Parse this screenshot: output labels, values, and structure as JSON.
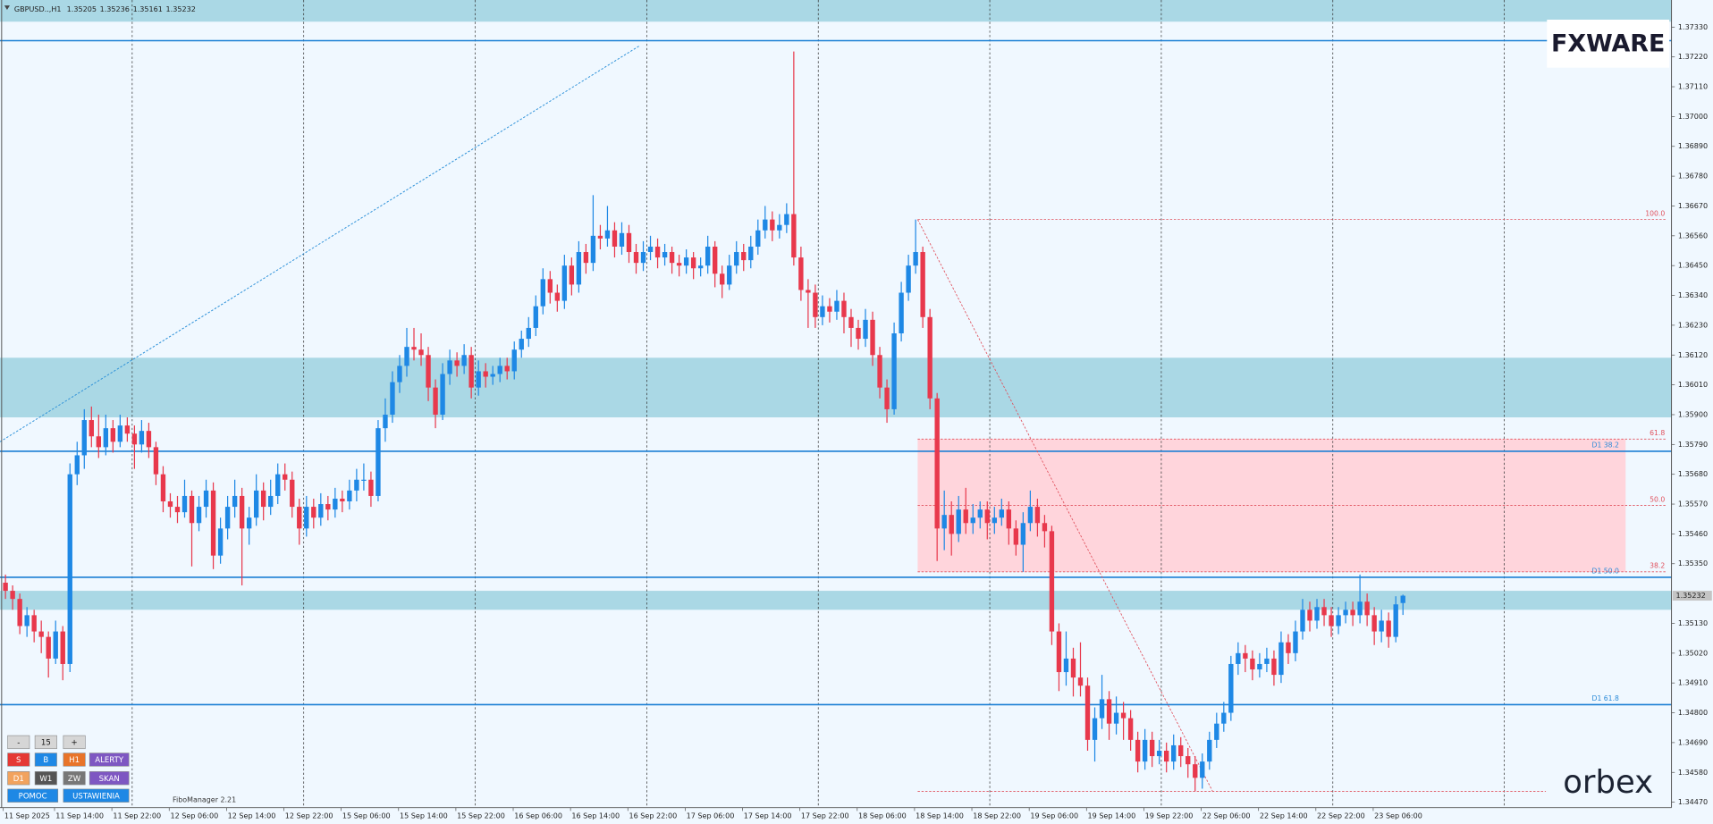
{
  "chart_data": {
    "type": "candlestick",
    "symbol": "GBPUSD..,H1",
    "up_color": "#1e88e5",
    "down_color": "#e8384c",
    "candles": [
      [
        1.3528,
        1.3531,
        1.3522,
        1.3525
      ],
      [
        1.3525,
        1.3527,
        1.3518,
        1.3522
      ],
      [
        1.3522,
        1.3524,
        1.3509,
        1.3512
      ],
      [
        1.3512,
        1.3519,
        1.3508,
        1.3516
      ],
      [
        1.3516,
        1.3518,
        1.3506,
        1.351
      ],
      [
        1.351,
        1.3514,
        1.3502,
        1.3508
      ],
      [
        1.3508,
        1.351,
        1.3493,
        1.35
      ],
      [
        1.35,
        1.3514,
        1.3498,
        1.351
      ],
      [
        1.351,
        1.3512,
        1.3492,
        1.3498
      ],
      [
        1.3498,
        1.3572,
        1.3495,
        1.3568
      ],
      [
        1.3568,
        1.358,
        1.3564,
        1.3575
      ],
      [
        1.3575,
        1.3592,
        1.357,
        1.3588
      ],
      [
        1.3588,
        1.3593,
        1.3578,
        1.3582
      ],
      [
        1.3582,
        1.359,
        1.3574,
        1.3578
      ],
      [
        1.3578,
        1.359,
        1.3575,
        1.3585
      ],
      [
        1.3585,
        1.3588,
        1.3576,
        1.358
      ],
      [
        1.358,
        1.359,
        1.3578,
        1.3586
      ],
      [
        1.3586,
        1.3589,
        1.358,
        1.3583
      ],
      [
        1.3583,
        1.3586,
        1.357,
        1.3579
      ],
      [
        1.3579,
        1.3588,
        1.3576,
        1.3584
      ],
      [
        1.3584,
        1.3587,
        1.3574,
        1.3578
      ],
      [
        1.3578,
        1.358,
        1.3564,
        1.3568
      ],
      [
        1.3568,
        1.3571,
        1.3554,
        1.3558
      ],
      [
        1.3558,
        1.3561,
        1.3552,
        1.3556
      ],
      [
        1.3556,
        1.356,
        1.355,
        1.3554
      ],
      [
        1.3554,
        1.3566,
        1.3552,
        1.356
      ],
      [
        1.356,
        1.3562,
        1.3534,
        1.355
      ],
      [
        1.355,
        1.356,
        1.3547,
        1.3556
      ],
      [
        1.3556,
        1.3566,
        1.3552,
        1.3562
      ],
      [
        1.3562,
        1.3565,
        1.3533,
        1.3538
      ],
      [
        1.3538,
        1.3552,
        1.3535,
        1.3548
      ],
      [
        1.3548,
        1.356,
        1.3544,
        1.3556
      ],
      [
        1.3556,
        1.3566,
        1.3552,
        1.356
      ],
      [
        1.356,
        1.3563,
        1.3527,
        1.3548
      ],
      [
        1.3548,
        1.3556,
        1.3542,
        1.3552
      ],
      [
        1.3552,
        1.3568,
        1.3549,
        1.3562
      ],
      [
        1.3562,
        1.3565,
        1.3551,
        1.3556
      ],
      [
        1.3556,
        1.3566,
        1.3553,
        1.356
      ],
      [
        1.356,
        1.3572,
        1.3557,
        1.3568
      ],
      [
        1.3568,
        1.3572,
        1.3562,
        1.3566
      ],
      [
        1.3566,
        1.3569,
        1.3552,
        1.3556
      ],
      [
        1.3556,
        1.3559,
        1.3542,
        1.3548
      ],
      [
        1.3548,
        1.356,
        1.3545,
        1.3556
      ],
      [
        1.3556,
        1.3559,
        1.3548,
        1.3552
      ],
      [
        1.3552,
        1.3561,
        1.3549,
        1.3557
      ],
      [
        1.3557,
        1.356,
        1.3551,
        1.3555
      ],
      [
        1.3555,
        1.3563,
        1.3552,
        1.3559
      ],
      [
        1.3559,
        1.3562,
        1.3554,
        1.3558
      ],
      [
        1.3558,
        1.3566,
        1.3555,
        1.3562
      ],
      [
        1.3562,
        1.357,
        1.3558,
        1.3566
      ],
      [
        1.3566,
        1.3572,
        1.3562,
        1.3566
      ],
      [
        1.3566,
        1.3569,
        1.3556,
        1.356
      ],
      [
        1.356,
        1.3588,
        1.3558,
        1.3585
      ],
      [
        1.3585,
        1.3596,
        1.358,
        1.359
      ],
      [
        1.359,
        1.3606,
        1.3587,
        1.3602
      ],
      [
        1.3602,
        1.3612,
        1.3598,
        1.3608
      ],
      [
        1.3608,
        1.3622,
        1.3604,
        1.3615
      ],
      [
        1.3615,
        1.3622,
        1.361,
        1.3614
      ],
      [
        1.3614,
        1.362,
        1.3608,
        1.3612
      ],
      [
        1.3612,
        1.3615,
        1.3595,
        1.36
      ],
      [
        1.36,
        1.3603,
        1.3585,
        1.359
      ],
      [
        1.359,
        1.3609,
        1.3588,
        1.3605
      ],
      [
        1.3605,
        1.3614,
        1.3601,
        1.361
      ],
      [
        1.361,
        1.3613,
        1.3604,
        1.3608
      ],
      [
        1.3608,
        1.3616,
        1.3605,
        1.3612
      ],
      [
        1.3612,
        1.3615,
        1.3596,
        1.36
      ],
      [
        1.36,
        1.361,
        1.3597,
        1.3606
      ],
      [
        1.3606,
        1.3609,
        1.36,
        1.3604
      ],
      [
        1.3604,
        1.3608,
        1.3601,
        1.3605
      ],
      [
        1.3605,
        1.3611,
        1.3602,
        1.3608
      ],
      [
        1.3608,
        1.3611,
        1.3603,
        1.3606
      ],
      [
        1.3606,
        1.3617,
        1.3603,
        1.3614
      ],
      [
        1.3614,
        1.3621,
        1.3611,
        1.3618
      ],
      [
        1.3618,
        1.3626,
        1.3615,
        1.3622
      ],
      [
        1.3622,
        1.3634,
        1.3619,
        1.363
      ],
      [
        1.363,
        1.3644,
        1.3627,
        1.364
      ],
      [
        1.364,
        1.3643,
        1.3631,
        1.3635
      ],
      [
        1.3635,
        1.3638,
        1.3628,
        1.3632
      ],
      [
        1.3632,
        1.3649,
        1.3629,
        1.3645
      ],
      [
        1.3645,
        1.3648,
        1.3634,
        1.3638
      ],
      [
        1.3638,
        1.3654,
        1.3635,
        1.365
      ],
      [
        1.365,
        1.3653,
        1.3642,
        1.3646
      ],
      [
        1.3646,
        1.3671,
        1.3643,
        1.3656
      ],
      [
        1.3656,
        1.366,
        1.3651,
        1.3655
      ],
      [
        1.3655,
        1.3667,
        1.3652,
        1.3658
      ],
      [
        1.3658,
        1.3661,
        1.3648,
        1.3652
      ],
      [
        1.3652,
        1.3661,
        1.3649,
        1.3657
      ],
      [
        1.3657,
        1.366,
        1.3646,
        1.365
      ],
      [
        1.365,
        1.3653,
        1.3642,
        1.3646
      ],
      [
        1.3646,
        1.3654,
        1.3643,
        1.365
      ],
      [
        1.365,
        1.3656,
        1.3647,
        1.3652
      ],
      [
        1.3652,
        1.3655,
        1.3644,
        1.3648
      ],
      [
        1.3648,
        1.3653,
        1.3645,
        1.365
      ],
      [
        1.365,
        1.3652,
        1.3642,
        1.3646
      ],
      [
        1.3646,
        1.3649,
        1.3641,
        1.3645
      ],
      [
        1.3645,
        1.3651,
        1.3642,
        1.3648
      ],
      [
        1.3648,
        1.365,
        1.364,
        1.3644
      ],
      [
        1.3644,
        1.3648,
        1.3641,
        1.3645
      ],
      [
        1.3645,
        1.3656,
        1.3642,
        1.3652
      ],
      [
        1.3652,
        1.3654,
        1.3637,
        1.3642
      ],
      [
        1.3642,
        1.3645,
        1.3633,
        1.3638
      ],
      [
        1.3638,
        1.3649,
        1.3636,
        1.3645
      ],
      [
        1.3645,
        1.3654,
        1.3642,
        1.365
      ],
      [
        1.365,
        1.3653,
        1.3643,
        1.3647
      ],
      [
        1.3647,
        1.3656,
        1.3644,
        1.3652
      ],
      [
        1.3652,
        1.3662,
        1.3649,
        1.3658
      ],
      [
        1.3658,
        1.3667,
        1.3655,
        1.3662
      ],
      [
        1.3662,
        1.3665,
        1.3654,
        1.3658
      ],
      [
        1.3658,
        1.3664,
        1.3655,
        1.366
      ],
      [
        1.366,
        1.3668,
        1.3657,
        1.3664
      ],
      [
        1.3664,
        1.3724,
        1.3645,
        1.3648
      ],
      [
        1.3648,
        1.3652,
        1.3632,
        1.3636
      ],
      [
        1.3636,
        1.364,
        1.3622,
        1.3635
      ],
      [
        1.3635,
        1.3638,
        1.3622,
        1.3626
      ],
      [
        1.3626,
        1.3634,
        1.3623,
        1.363
      ],
      [
        1.363,
        1.3633,
        1.3624,
        1.3628
      ],
      [
        1.3628,
        1.3636,
        1.3625,
        1.3632
      ],
      [
        1.3632,
        1.3635,
        1.362,
        1.3626
      ],
      [
        1.3626,
        1.3629,
        1.3615,
        1.3622
      ],
      [
        1.3622,
        1.3625,
        1.3614,
        1.3618
      ],
      [
        1.3618,
        1.3629,
        1.3615,
        1.3625
      ],
      [
        1.3625,
        1.3628,
        1.3608,
        1.3612
      ],
      [
        1.3612,
        1.3615,
        1.3596,
        1.36
      ],
      [
        1.36,
        1.3603,
        1.3587,
        1.3592
      ],
      [
        1.3592,
        1.3624,
        1.359,
        1.362
      ],
      [
        1.362,
        1.3639,
        1.3617,
        1.3635
      ],
      [
        1.3635,
        1.3649,
        1.3632,
        1.3645
      ],
      [
        1.3645,
        1.3662,
        1.3642,
        1.365
      ],
      [
        1.365,
        1.3652,
        1.3622,
        1.3626
      ],
      [
        1.3626,
        1.3629,
        1.3592,
        1.3596
      ],
      [
        1.3596,
        1.3598,
        1.3536,
        1.3548
      ],
      [
        1.3548,
        1.3562,
        1.354,
        1.3553
      ],
      [
        1.3553,
        1.3558,
        1.3538,
        1.3546
      ],
      [
        1.3546,
        1.356,
        1.3543,
        1.3555
      ],
      [
        1.3555,
        1.3563,
        1.3546,
        1.355
      ],
      [
        1.355,
        1.3557,
        1.3546,
        1.3552
      ],
      [
        1.3552,
        1.3558,
        1.3548,
        1.3555
      ],
      [
        1.3555,
        1.3558,
        1.3544,
        1.355
      ],
      [
        1.355,
        1.3556,
        1.3546,
        1.3552
      ],
      [
        1.3552,
        1.3559,
        1.3549,
        1.3555
      ],
      [
        1.3555,
        1.3558,
        1.3542,
        1.3548
      ],
      [
        1.3548,
        1.3551,
        1.3538,
        1.3542
      ],
      [
        1.3542,
        1.3554,
        1.3532,
        1.355
      ],
      [
        1.355,
        1.3562,
        1.3547,
        1.3556
      ],
      [
        1.3556,
        1.3559,
        1.3545,
        1.355
      ],
      [
        1.355,
        1.3553,
        1.3541,
        1.3547
      ],
      [
        1.3547,
        1.3549,
        1.3505,
        1.351
      ],
      [
        1.351,
        1.3513,
        1.3488,
        1.3495
      ],
      [
        1.3495,
        1.351,
        1.349,
        1.35
      ],
      [
        1.35,
        1.3504,
        1.3486,
        1.3493
      ],
      [
        1.3493,
        1.3506,
        1.3486,
        1.349
      ],
      [
        1.349,
        1.3493,
        1.3466,
        1.347
      ],
      [
        1.347,
        1.3482,
        1.3462,
        1.3478
      ],
      [
        1.3478,
        1.3494,
        1.3474,
        1.3485
      ],
      [
        1.3485,
        1.3488,
        1.347,
        1.3476
      ],
      [
        1.3476,
        1.3486,
        1.3472,
        1.348
      ],
      [
        1.348,
        1.3484,
        1.347,
        1.3478
      ],
      [
        1.3478,
        1.3481,
        1.3466,
        1.347
      ],
      [
        1.347,
        1.3473,
        1.3458,
        1.3462
      ],
      [
        1.3462,
        1.3474,
        1.3459,
        1.347
      ],
      [
        1.347,
        1.3473,
        1.346,
        1.3464
      ],
      [
        1.3464,
        1.347,
        1.3461,
        1.3466
      ],
      [
        1.3466,
        1.3469,
        1.3458,
        1.3462
      ],
      [
        1.3462,
        1.3472,
        1.3459,
        1.3468
      ],
      [
        1.3468,
        1.3471,
        1.346,
        1.3464
      ],
      [
        1.3464,
        1.3467,
        1.3456,
        1.3461
      ],
      [
        1.3461,
        1.3464,
        1.3451,
        1.3456
      ],
      [
        1.3456,
        1.3465,
        1.3452,
        1.3462
      ],
      [
        1.3462,
        1.3473,
        1.3459,
        1.347
      ],
      [
        1.347,
        1.348,
        1.3467,
        1.3476
      ],
      [
        1.3476,
        1.3484,
        1.3473,
        1.348
      ],
      [
        1.348,
        1.3501,
        1.3477,
        1.3498
      ],
      [
        1.3498,
        1.3506,
        1.3494,
        1.3502
      ],
      [
        1.3502,
        1.3505,
        1.3495,
        1.35
      ],
      [
        1.35,
        1.3503,
        1.3492,
        1.3496
      ],
      [
        1.3496,
        1.3502,
        1.3493,
        1.3498
      ],
      [
        1.3498,
        1.3504,
        1.3495,
        1.35
      ],
      [
        1.35,
        1.3503,
        1.349,
        1.3494
      ],
      [
        1.3494,
        1.351,
        1.3491,
        1.3506
      ],
      [
        1.3506,
        1.3509,
        1.3498,
        1.3502
      ],
      [
        1.3502,
        1.3514,
        1.3499,
        1.351
      ],
      [
        1.351,
        1.3522,
        1.3507,
        1.3518
      ],
      [
        1.3518,
        1.3521,
        1.351,
        1.3514
      ],
      [
        1.3514,
        1.3522,
        1.3511,
        1.3519
      ],
      [
        1.3519,
        1.3522,
        1.3512,
        1.3516
      ],
      [
        1.3516,
        1.3519,
        1.3508,
        1.3512
      ],
      [
        1.3512,
        1.3519,
        1.3509,
        1.3516
      ],
      [
        1.3516,
        1.3521,
        1.3513,
        1.3518
      ],
      [
        1.3518,
        1.3521,
        1.3512,
        1.3516
      ],
      [
        1.3516,
        1.3531,
        1.3513,
        1.3521
      ],
      [
        1.3521,
        1.3524,
        1.3512,
        1.3516
      ],
      [
        1.3516,
        1.3519,
        1.3505,
        1.351
      ],
      [
        1.351,
        1.3518,
        1.3506,
        1.3514
      ],
      [
        1.3514,
        1.3517,
        1.3504,
        1.3508
      ],
      [
        1.3508,
        1.3523,
        1.3506,
        1.352
      ],
      [
        1.35205,
        1.35236,
        1.35161,
        1.35232
      ]
    ],
    "x": [
      "11 Sep 2025",
      "11 Sep 14:00",
      "11 Sep 22:00",
      "12 Sep 06:00",
      "12 Sep 14:00",
      "12 Sep 22:00",
      "15 Sep 06:00",
      "15 Sep 14:00",
      "15 Sep 22:00",
      "16 Sep 06:00",
      "16 Sep 14:00",
      "16 Sep 22:00",
      "17 Sep 06:00",
      "17 Sep 14:00",
      "17 Sep 22:00",
      "18 Sep 06:00",
      "18 Sep 14:00",
      "18 Sep 22:00",
      "19 Sep 06:00",
      "19 Sep 14:00",
      "19 Sep 22:00",
      "22 Sep 06:00",
      "22 Sep 14:00",
      "22 Sep 22:00",
      "23 Sep 06:00"
    ],
    "ylim": [
      1.3445,
      1.3743
    ],
    "yticks": [
      {
        "value": 1.3733,
        "label": "1.37330"
      },
      {
        "value": 1.3722,
        "label": "1.37220"
      },
      {
        "value": 1.3711,
        "label": "1.37110"
      },
      {
        "value": 1.37,
        "label": "1.37000"
      },
      {
        "value": 1.3689,
        "label": "1.36890"
      },
      {
        "value": 1.3678,
        "label": "1.36780"
      },
      {
        "value": 1.3667,
        "label": "1.36670"
      },
      {
        "value": 1.3656,
        "label": "1.36560"
      },
      {
        "value": 1.3645,
        "label": "1.36450"
      },
      {
        "value": 1.3634,
        "label": "1.36340"
      },
      {
        "value": 1.3623,
        "label": "1.36230"
      },
      {
        "value": 1.3612,
        "label": "1.36120"
      },
      {
        "value": 1.3601,
        "label": "1.36010"
      },
      {
        "value": 1.359,
        "label": "1.35900"
      },
      {
        "value": 1.3579,
        "label": "1.35790"
      },
      {
        "value": 1.3568,
        "label": "1.35680"
      },
      {
        "value": 1.3557,
        "label": "1.35570"
      },
      {
        "value": 1.3546,
        "label": "1.35460"
      },
      {
        "value": 1.3535,
        "label": "1.35350"
      },
      {
        "value": 1.3513,
        "label": "1.35130"
      },
      {
        "value": 1.3502,
        "label": "1.35020"
      },
      {
        "value": 1.3491,
        "label": "1.34910"
      },
      {
        "value": 1.348,
        "label": "1.34800"
      },
      {
        "value": 1.3469,
        "label": "1.34690"
      },
      {
        "value": 1.3458,
        "label": "1.34580"
      },
      {
        "value": 1.3447,
        "label": "1.34470"
      }
    ],
    "zone_color": "#aad8e5",
    "zones": [
      [
        1.3735,
        1.3743
      ],
      [
        1.3589,
        1.3611
      ],
      [
        1.3518,
        1.3525
      ]
    ],
    "level_color": "#1b7fd4",
    "levels": [
      {
        "value": 1.3728
      },
      {
        "value": 1.35765,
        "label": "D1 38.2"
      },
      {
        "value": 1.353,
        "label": "D1 50.0"
      },
      {
        "value": 1.3483,
        "label": "D1 61.8"
      }
    ],
    "fib": {
      "color": "#e0505c",
      "zone_color": "#ffd5dc",
      "levels": [
        {
          "value": 1.3662,
          "label": "100.0"
        },
        {
          "value": 1.3581,
          "label": "61.8"
        },
        {
          "value": 1.35565,
          "label": "50.0"
        },
        {
          "value": 1.3532,
          "label": "38.2"
        }
      ],
      "low": 1.3451
    },
    "trendline": {
      "start": 1.358,
      "end": 1.3726,
      "color": "#2a8fd8"
    }
  },
  "ui": {
    "buttons": [
      "-",
      "15",
      "+",
      "S",
      "B",
      "H1",
      "ALERTY",
      "D1",
      "W1",
      "ZW",
      "SKAN",
      "POMOC",
      "USTAWIENIA"
    ],
    "indicator": "FiboManager 2.21",
    "logo_top": "FXWARE",
    "logo_bottom": "orbex"
  }
}
